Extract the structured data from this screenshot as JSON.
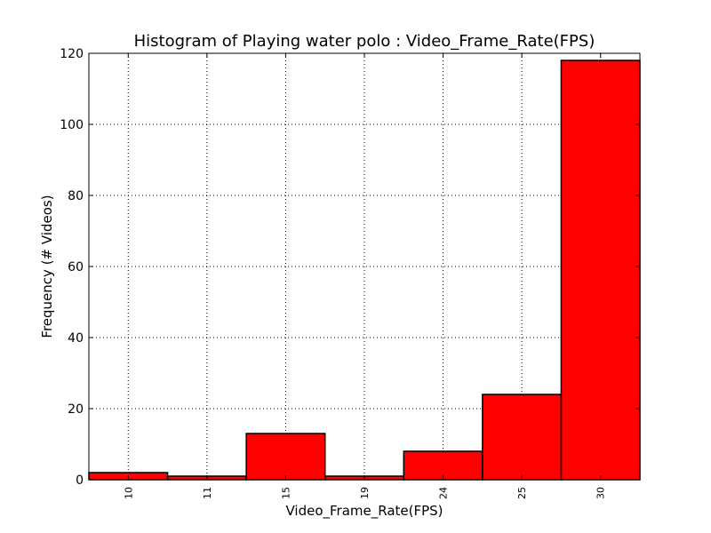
{
  "chart_data": {
    "type": "bar",
    "title": "Histogram of Playing water polo : Video_Frame_Rate(FPS)",
    "xlabel": "Video_Frame_Rate(FPS)",
    "ylabel": "Frequency (# Videos)",
    "categories": [
      "10",
      "11",
      "15",
      "19",
      "24",
      "25",
      "30"
    ],
    "values": [
      2,
      1,
      13,
      1,
      8,
      24,
      118
    ],
    "ylim": [
      0,
      120
    ],
    "yticks": [
      "0",
      "20",
      "40",
      "60",
      "80",
      "100",
      "120"
    ],
    "grid": true,
    "bar_color": "#ff0000",
    "edge_color": "#000000"
  }
}
